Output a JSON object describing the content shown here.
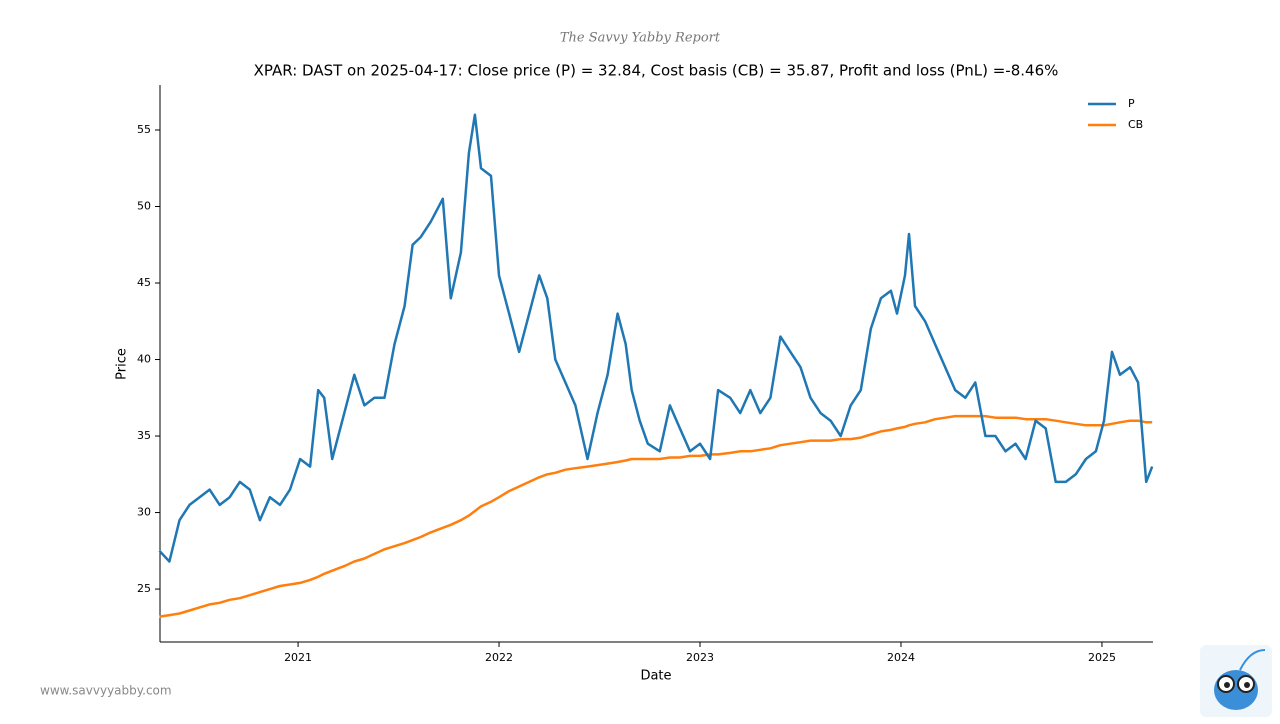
{
  "chart_data": {
    "type": "line",
    "subtitle": "The Savvy Yabby Report",
    "title": "XPAR: DAST on 2025-04-17: Close price (P) = 32.84, Cost basis (CB) = 35.87, Profit and loss (PnL) =-8.46%",
    "xlabel": "Date",
    "ylabel": "Price",
    "footer": "www.savvyyabby.com",
    "legend": "upper right",
    "x": [
      2020.31,
      2020.36,
      2020.41,
      2020.46,
      2020.51,
      2020.56,
      2020.61,
      2020.66,
      2020.71,
      2020.76,
      2020.81,
      2020.86,
      2020.91,
      2020.96,
      2021.01,
      2021.06,
      2021.1,
      2021.13,
      2021.17,
      2021.23,
      2021.28,
      2021.33,
      2021.38,
      2021.43,
      2021.48,
      2021.53,
      2021.57,
      2021.61,
      2021.66,
      2021.72,
      2021.76,
      2021.81,
      2021.85,
      2021.88,
      2021.91,
      2021.96,
      2022.0,
      2022.05,
      2022.1,
      2022.15,
      2022.2,
      2022.24,
      2022.28,
      2022.33,
      2022.38,
      2022.44,
      2022.49,
      2022.54,
      2022.59,
      2022.63,
      2022.66,
      2022.7,
      2022.74,
      2022.8,
      2022.85,
      2022.9,
      2022.95,
      2023.0,
      2023.05,
      2023.09,
      2023.15,
      2023.2,
      2023.25,
      2023.3,
      2023.35,
      2023.4,
      2023.45,
      2023.5,
      2023.55,
      2023.6,
      2023.65,
      2023.7,
      2023.75,
      2023.8,
      2023.85,
      2023.9,
      2023.95,
      2023.98,
      2024.02,
      2024.04,
      2024.07,
      2024.12,
      2024.17,
      2024.22,
      2024.27,
      2024.32,
      2024.37,
      2024.42,
      2024.47,
      2024.52,
      2024.57,
      2024.62,
      2024.67,
      2024.72,
      2024.77,
      2024.82,
      2024.87,
      2024.92,
      2024.97,
      2025.01,
      2025.05,
      2025.09,
      2025.14,
      2025.18,
      2025.22,
      2025.25
    ],
    "series": [
      {
        "name": "P",
        "color": "#1f77b4",
        "values": [
          27.5,
          26.8,
          29.5,
          30.5,
          31,
          31.5,
          30.5,
          31,
          32,
          31.5,
          29.5,
          31,
          30.5,
          31.5,
          33.5,
          33,
          38,
          37.5,
          33.5,
          36.5,
          39,
          37,
          37.5,
          37.5,
          41,
          43.5,
          47.5,
          48,
          49,
          50.5,
          44,
          47,
          53.5,
          56,
          52.5,
          52,
          45.5,
          43,
          40.5,
          43,
          45.5,
          44,
          40,
          38.5,
          37,
          33.5,
          36.5,
          39,
          43,
          41,
          38,
          36,
          34.5,
          34,
          37,
          35.5,
          34,
          34.5,
          33.5,
          38,
          37.5,
          36.5,
          38,
          36.5,
          37.5,
          41.5,
          40.5,
          39.5,
          37.5,
          36.5,
          36,
          35,
          37,
          38,
          42,
          44,
          44.5,
          43,
          45.5,
          48.2,
          43.5,
          42.5,
          41,
          39.5,
          38,
          37.5,
          38.5,
          35,
          35,
          34,
          34.5,
          33.5,
          36,
          35.5,
          32,
          32,
          32.5,
          33.5,
          34,
          36,
          40.5,
          39,
          39.5,
          38.5,
          32,
          33
        ]
      },
      {
        "name": "CB",
        "color": "#ff7f0e",
        "values": [
          23.2,
          23.3,
          23.4,
          23.6,
          23.8,
          24.0,
          24.1,
          24.3,
          24.4,
          24.6,
          24.8,
          25.0,
          25.2,
          25.3,
          25.4,
          25.6,
          25.8,
          26.0,
          26.2,
          26.5,
          26.8,
          27.0,
          27.3,
          27.6,
          27.8,
          28.0,
          28.2,
          28.4,
          28.7,
          29.0,
          29.2,
          29.5,
          29.8,
          30.1,
          30.4,
          30.7,
          31.0,
          31.4,
          31.7,
          32.0,
          32.3,
          32.5,
          32.6,
          32.8,
          32.9,
          33.0,
          33.1,
          33.2,
          33.3,
          33.4,
          33.5,
          33.5,
          33.5,
          33.5,
          33.6,
          33.6,
          33.7,
          33.7,
          33.8,
          33.8,
          33.9,
          34.0,
          34.0,
          34.1,
          34.2,
          34.4,
          34.5,
          34.6,
          34.7,
          34.7,
          34.7,
          34.8,
          34.8,
          34.9,
          35.1,
          35.3,
          35.4,
          35.5,
          35.6,
          35.7,
          35.8,
          35.9,
          36.1,
          36.2,
          36.3,
          36.3,
          36.3,
          36.3,
          36.2,
          36.2,
          36.2,
          36.1,
          36.1,
          36.1,
          36.0,
          35.9,
          35.8,
          35.7,
          35.7,
          35.7,
          35.8,
          35.9,
          36.0,
          36.0,
          35.9,
          35.9
        ]
      }
    ],
    "xlim": [
      2020.313,
      2025.254
    ],
    "xticks": [
      2021,
      2022,
      2023,
      2024,
      2025
    ],
    "ylim": [
      21.54,
      57.94
    ],
    "yticks": [
      25,
      30,
      35,
      40,
      45,
      50,
      55
    ],
    "grid": false
  }
}
